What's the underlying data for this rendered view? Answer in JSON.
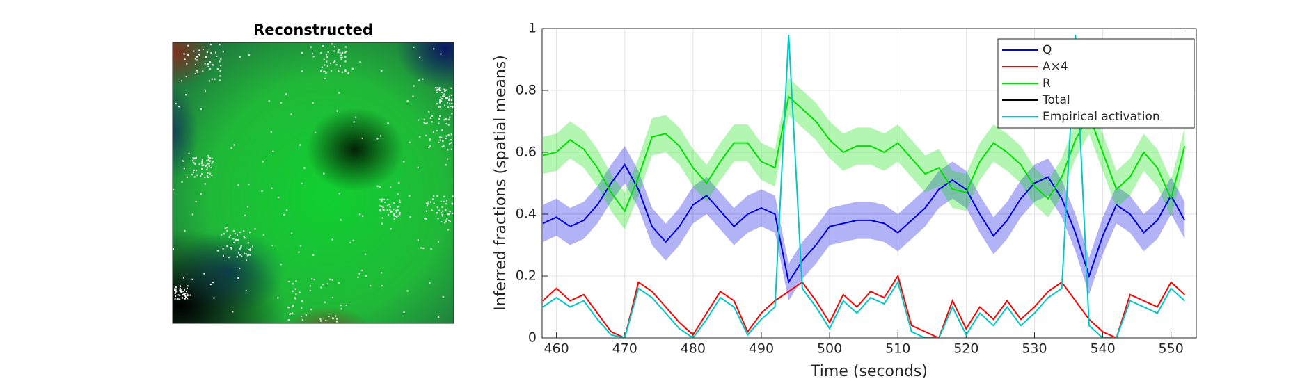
{
  "image": {
    "title": "Reconstructed"
  },
  "chart_data": {
    "type": "line",
    "xlabel": "Time (seconds)",
    "ylabel": "Inferred fractions (spatial means)",
    "xlim": [
      457.9,
      553.7
    ],
    "ylim": [
      0,
      1
    ],
    "xticks": [
      460,
      470,
      480,
      490,
      500,
      510,
      520,
      530,
      540,
      550
    ],
    "yticks": [
      0,
      0.2,
      0.4,
      0.6,
      0.8,
      1
    ],
    "grid": true,
    "legend": "upper right",
    "x": [
      458,
      460,
      462,
      464,
      466,
      468,
      470,
      472,
      474,
      476,
      478,
      480,
      482,
      484,
      486,
      488,
      490,
      492,
      494,
      496,
      498,
      500,
      502,
      504,
      506,
      508,
      510,
      512,
      514,
      516,
      518,
      520,
      522,
      524,
      526,
      528,
      530,
      532,
      534,
      536,
      538,
      540,
      542,
      544,
      546,
      548,
      550,
      552
    ],
    "series": [
      {
        "name": "Q",
        "color": "#0000e0",
        "band": 0.06,
        "values": [
          0.37,
          0.39,
          0.36,
          0.38,
          0.43,
          0.5,
          0.56,
          0.48,
          0.36,
          0.31,
          0.36,
          0.43,
          0.46,
          0.41,
          0.36,
          0.4,
          0.42,
          0.4,
          0.18,
          0.25,
          0.3,
          0.36,
          0.37,
          0.38,
          0.38,
          0.37,
          0.34,
          0.38,
          0.42,
          0.48,
          0.51,
          0.48,
          0.4,
          0.33,
          0.38,
          0.45,
          0.5,
          0.52,
          0.45,
          0.34,
          0.2,
          0.33,
          0.43,
          0.4,
          0.34,
          0.38,
          0.46,
          0.38
        ]
      },
      {
        "name": "A×4",
        "color": "#ff0000",
        "values": [
          0.12,
          0.16,
          0.12,
          0.14,
          0.08,
          0.02,
          0.0,
          0.18,
          0.15,
          0.1,
          0.05,
          0.01,
          0.08,
          0.15,
          0.12,
          0.02,
          0.08,
          0.12,
          0.15,
          0.18,
          0.12,
          0.05,
          0.14,
          0.1,
          0.15,
          0.13,
          0.2,
          0.04,
          0.02,
          0.0,
          0.12,
          0.03,
          0.1,
          0.06,
          0.12,
          0.06,
          0.1,
          0.15,
          0.18,
          0.12,
          0.06,
          0.02,
          0.0,
          0.14,
          0.12,
          0.1,
          0.18,
          0.14
        ]
      },
      {
        "name": "R",
        "color": "#00e000",
        "band": 0.06,
        "values": [
          0.59,
          0.6,
          0.64,
          0.61,
          0.55,
          0.47,
          0.41,
          0.52,
          0.65,
          0.66,
          0.62,
          0.55,
          0.5,
          0.57,
          0.63,
          0.63,
          0.57,
          0.55,
          0.78,
          0.74,
          0.7,
          0.64,
          0.6,
          0.62,
          0.62,
          0.6,
          0.63,
          0.58,
          0.53,
          0.55,
          0.48,
          0.47,
          0.57,
          0.63,
          0.6,
          0.56,
          0.49,
          0.45,
          0.52,
          0.64,
          0.72,
          0.6,
          0.48,
          0.52,
          0.6,
          0.55,
          0.45,
          0.62
        ]
      },
      {
        "name": "Total",
        "color": "#000000",
        "values": [
          1,
          1,
          1,
          1,
          1,
          1,
          1,
          1,
          1,
          1,
          1,
          1,
          1,
          1,
          1,
          1,
          1,
          1,
          1,
          1,
          1,
          1,
          1,
          1,
          1,
          1,
          1,
          1,
          1,
          1,
          1,
          1,
          1,
          1,
          1,
          1,
          1,
          1,
          1,
          1,
          1,
          1,
          1,
          1,
          1,
          1,
          1,
          1
        ]
      },
      {
        "name": "Empirical activation",
        "color": "#00c8c8",
        "values": [
          0.1,
          0.13,
          0.1,
          0.12,
          0.06,
          0.01,
          0.0,
          0.16,
          0.13,
          0.08,
          0.03,
          0.0,
          0.06,
          0.13,
          0.1,
          0.01,
          0.06,
          0.1,
          0.98,
          0.16,
          0.1,
          0.03,
          0.12,
          0.08,
          0.13,
          0.11,
          0.18,
          0.02,
          0.0,
          0.0,
          0.1,
          0.01,
          0.08,
          0.04,
          0.1,
          0.04,
          0.08,
          0.13,
          0.16,
          0.98,
          0.04,
          0.0,
          0.0,
          0.12,
          0.1,
          0.08,
          0.16,
          0.12
        ]
      }
    ]
  }
}
